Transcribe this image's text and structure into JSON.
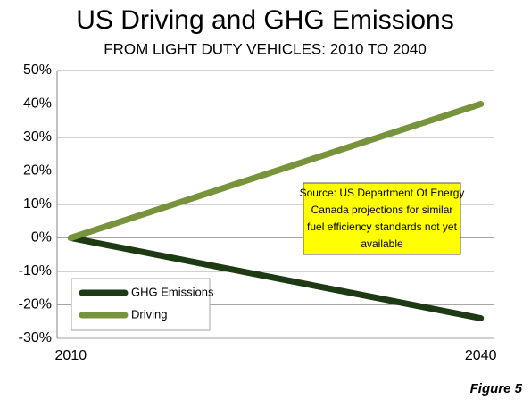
{
  "chart_data": {
    "type": "line",
    "title": "US Driving and GHG Emissions",
    "subtitle": "FROM LIGHT DUTY VEHICLES: 2010 TO 2040",
    "x": [
      2010,
      2040
    ],
    "xlim": [
      2009,
      2041
    ],
    "xticks": [
      2010,
      2040
    ],
    "series": [
      {
        "name": "GHG Emissions",
        "color": "#1e3a14",
        "values": [
          0,
          -24
        ]
      },
      {
        "name": "Driving",
        "color": "#77933c",
        "values": [
          0,
          40
        ]
      }
    ],
    "ylim": [
      -30,
      50
    ],
    "yticks": [
      {
        "value": -30,
        "label": "-30%"
      },
      {
        "value": -20,
        "label": "-20%"
      },
      {
        "value": -10,
        "label": "-10%"
      },
      {
        "value": 0,
        "label": "0%"
      },
      {
        "value": 10,
        "label": "10%"
      },
      {
        "value": 20,
        "label": "20%"
      },
      {
        "value": 30,
        "label": "30%"
      },
      {
        "value": 40,
        "label": "40%"
      },
      {
        "value": 50,
        "label": "50%"
      }
    ],
    "grid": true,
    "legend": "lower left",
    "annotation_lines": [
      "Source: US Department  Of Energy",
      "Canada projections for similar",
      "fuel efficiency standards not yet",
      "available"
    ],
    "annotation_color": "#ffff00",
    "figure_label": "Figure 5"
  }
}
